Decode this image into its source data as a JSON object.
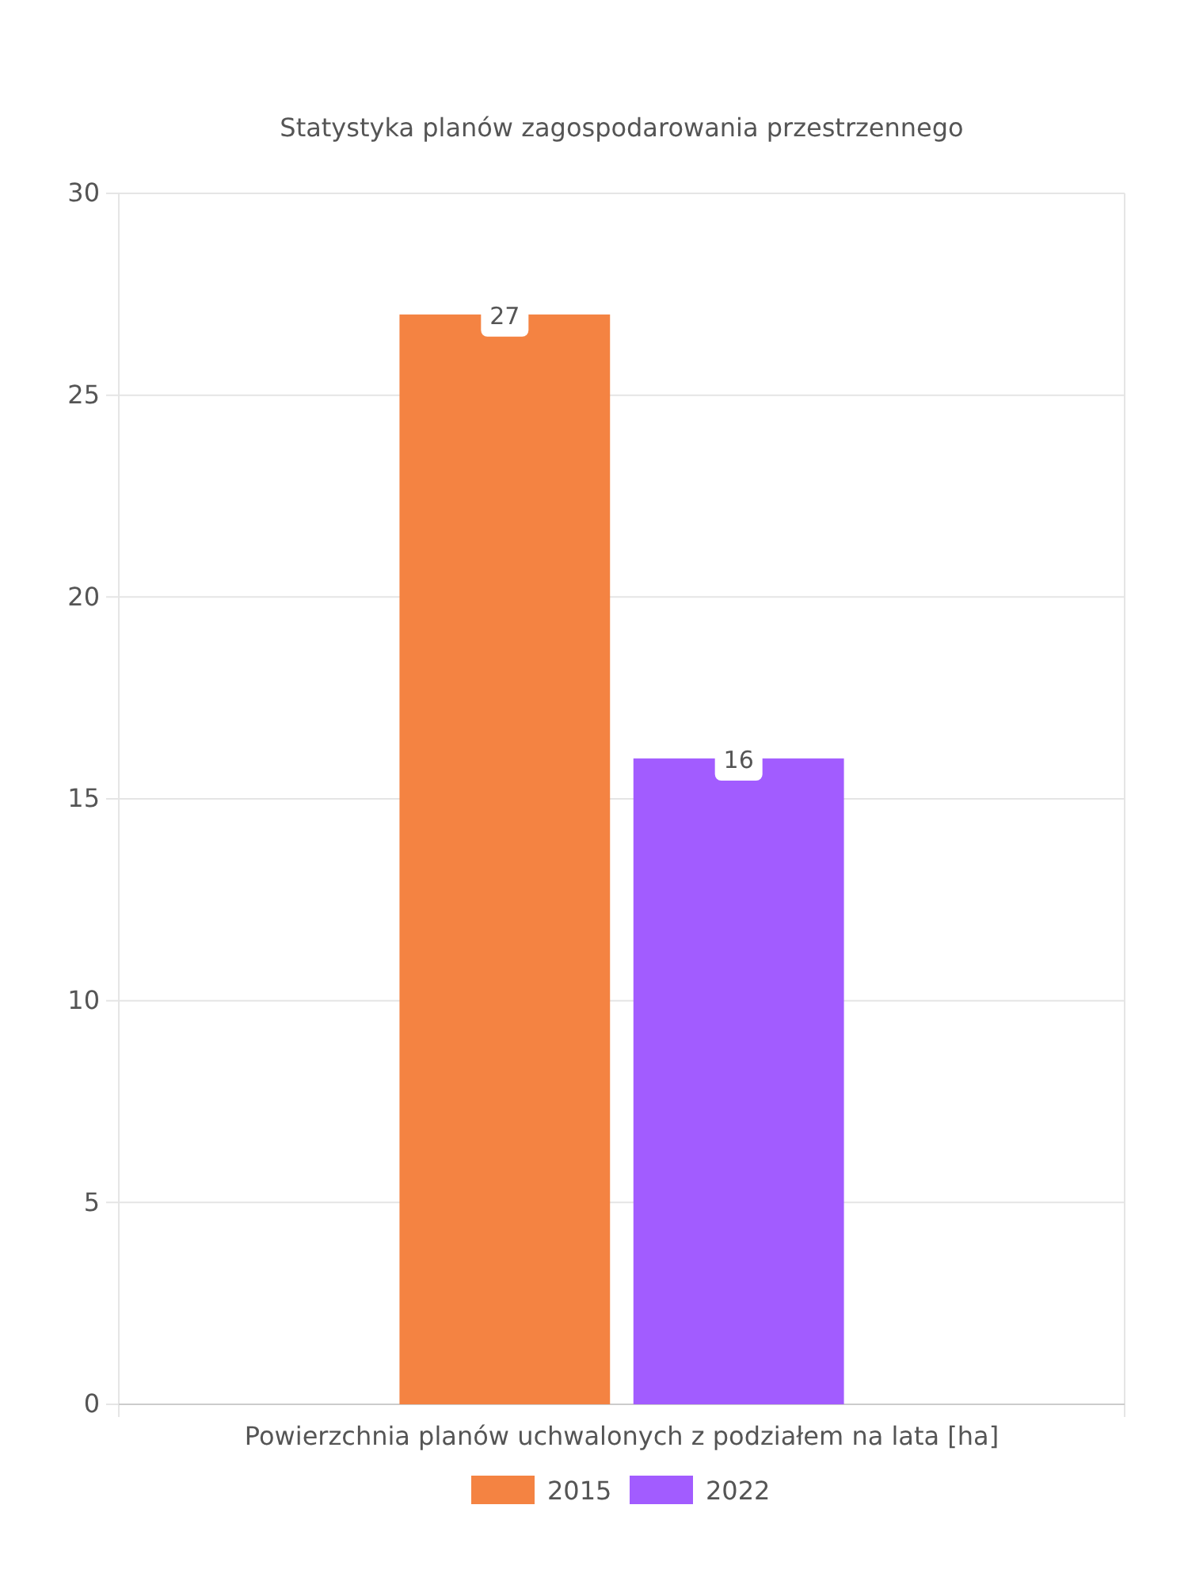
{
  "chart_data": {
    "type": "bar",
    "title": "Statystyka planów zagospodarowania przestrzennego",
    "categories": [
      "Powierzchnia planów uchwalonych z podziałem na lata [ha]"
    ],
    "series": [
      {
        "name": "2015",
        "color": "#f48342",
        "values": [
          27
        ]
      },
      {
        "name": "2022",
        "color": "#a25cff",
        "values": [
          16
        ]
      }
    ],
    "ylim": [
      0,
      30
    ],
    "yticks": [
      0,
      5,
      10,
      15,
      20,
      25,
      30
    ],
    "grid": true,
    "legend": "bottom",
    "data_labels": true
  }
}
